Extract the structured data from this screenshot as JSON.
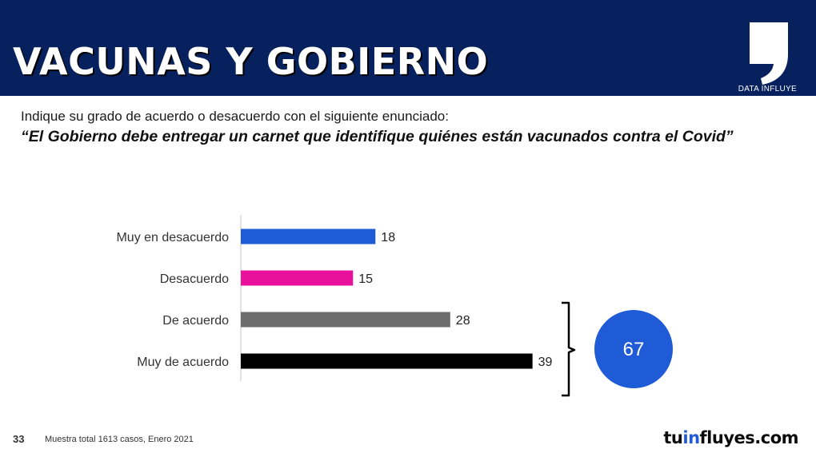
{
  "header": {
    "title": "VACUNAS Y GOBIERNO",
    "brand_label": "DATA INFLUYE",
    "background": "#06215e"
  },
  "question": "Indique su grado de acuerdo o desacuerdo con el siguiente enunciado:",
  "statement": "“El Gobierno debe entregar un carnet que identifique quiénes están vacunados contra el Covid”",
  "chart_data": {
    "type": "bar",
    "orientation": "horizontal",
    "categories": [
      "Muy en desacuerdo",
      "Desacuerdo",
      "De acuerdo",
      "Muy de acuerdo"
    ],
    "values": [
      18,
      15,
      28,
      39
    ],
    "colors": [
      "#1f5bd6",
      "#e8119b",
      "#6d6d6d",
      "#000000"
    ],
    "xlim": [
      0,
      40
    ],
    "grid": false,
    "legend": "none",
    "bracket_total": {
      "categories": [
        "De acuerdo",
        "Muy de acuerdo"
      ],
      "value": "67",
      "color": "#1f5bd6"
    }
  },
  "footer": {
    "page": "33",
    "note": "Muestra total 1613 casos,  Enero 2021",
    "brand_prefix": "tu",
    "brand_accent": "in",
    "brand_suffix": "fluyes.com"
  }
}
